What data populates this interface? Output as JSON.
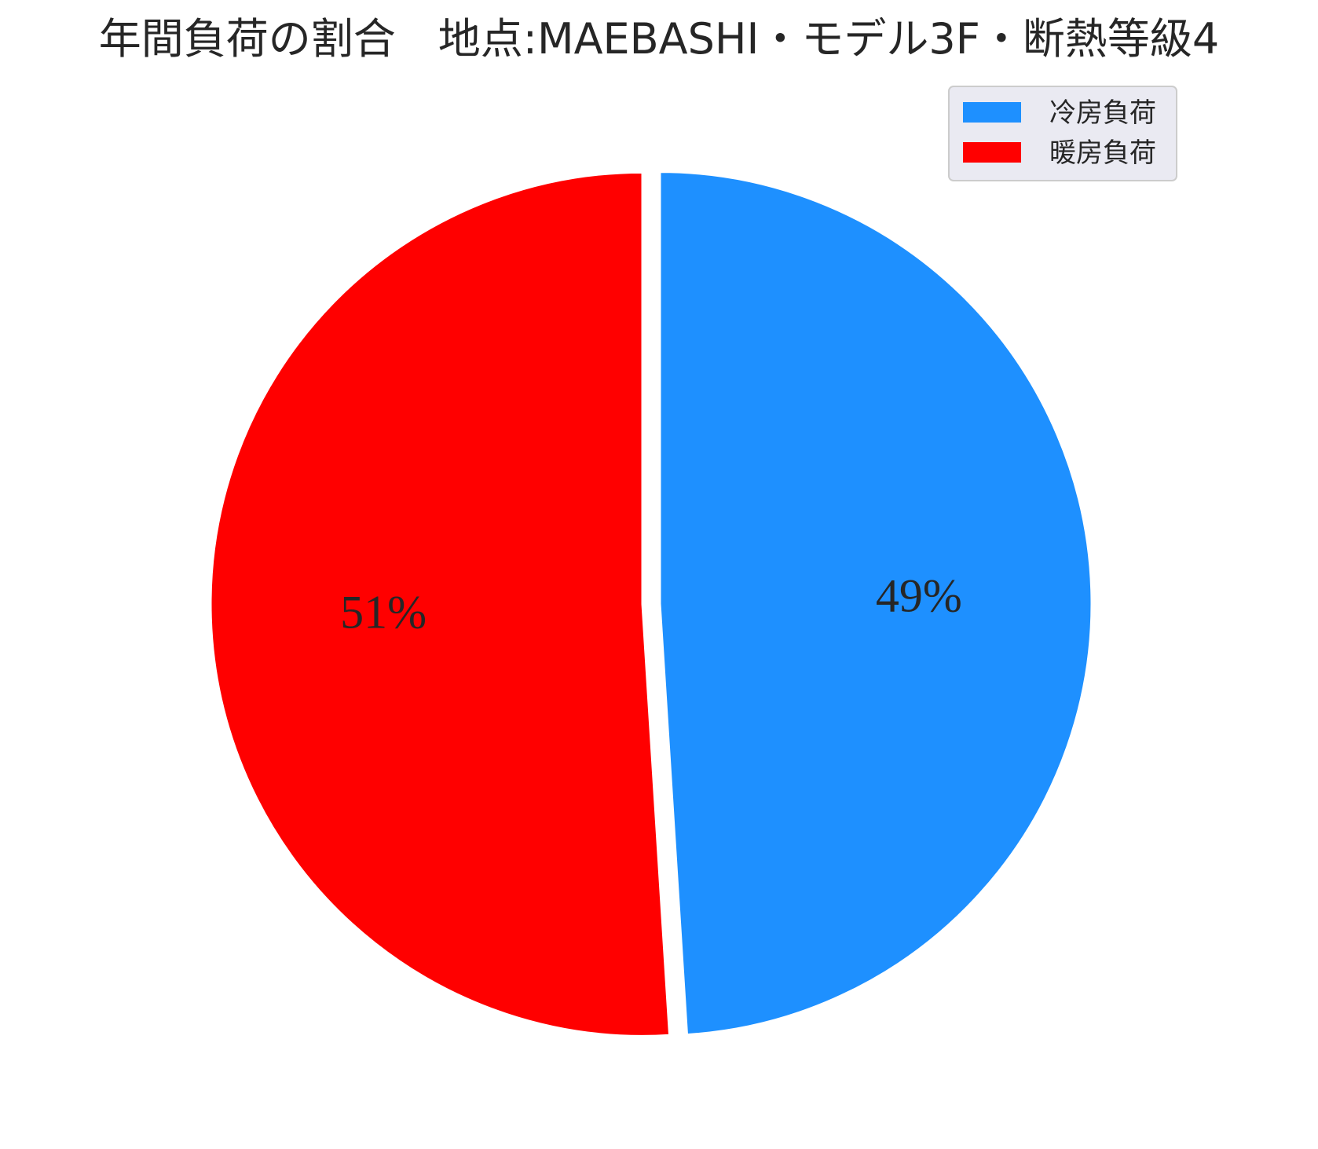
{
  "chart_data": {
    "type": "pie",
    "title": "年間負荷の割合　地点:MAEBASHI・モデル3F・断熱等級4",
    "categories": [
      "冷房負荷",
      "暖房負荷"
    ],
    "values": [
      49,
      51
    ],
    "labels": [
      "49%",
      "51%"
    ],
    "colors": [
      "#1e90ff",
      "#ff0000"
    ],
    "start_angle": 90,
    "direction": "clockwise",
    "explode": [
      0.02,
      0.02
    ],
    "legend_position": "top-right",
    "edge_color": "#ffffff"
  }
}
